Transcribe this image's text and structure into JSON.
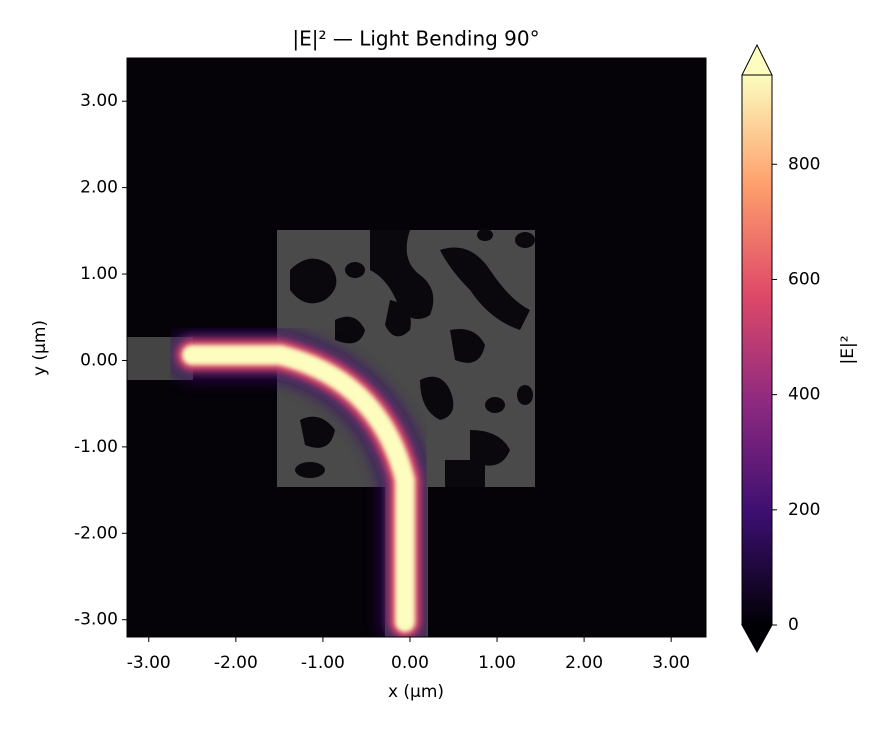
{
  "chart_data": {
    "type": "heatmap",
    "title": "|E|² — Light Bending 90°",
    "x_label": "x (µm)",
    "y_label": "y (µm)",
    "xlim": [
      -3.25,
      3.4
    ],
    "ylim": [
      -3.2,
      3.5
    ],
    "xticks": [
      {
        "value": -3,
        "label": "-3.00"
      },
      {
        "value": -2,
        "label": "-2.00"
      },
      {
        "value": -1,
        "label": "-1.00"
      },
      {
        "value": 0,
        "label": "0.00"
      },
      {
        "value": 1,
        "label": "1.00"
      },
      {
        "value": 2,
        "label": "2.00"
      },
      {
        "value": 3,
        "label": "3.00"
      }
    ],
    "yticks": [
      {
        "value": -3,
        "label": "-3.00"
      },
      {
        "value": -2,
        "label": "-2.00"
      },
      {
        "value": -1,
        "label": "-1.00"
      },
      {
        "value": 0,
        "label": "0.00"
      },
      {
        "value": 1,
        "label": "1.00"
      },
      {
        "value": 2,
        "label": "2.00"
      },
      {
        "value": 3,
        "label": "3.00"
      }
    ],
    "colorbar": {
      "label": "|E|²",
      "clim": [
        0,
        955
      ],
      "ticks": [
        0,
        200,
        400,
        600,
        800
      ],
      "colors": [
        "#000004",
        "#3b0f70",
        "#8c2981",
        "#de4968",
        "#fe9f6d",
        "#fcfdbf"
      ]
    }
  }
}
